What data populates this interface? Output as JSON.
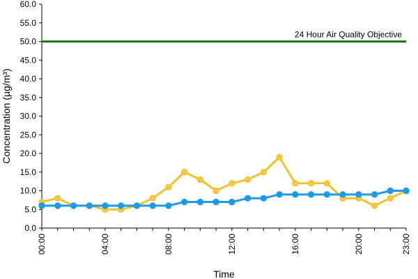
{
  "chart_data": {
    "type": "line",
    "xlabel": "Time",
    "ylabel": "Concentration (µg/m³)",
    "ylim": [
      0,
      60
    ],
    "y_ticks": [
      "0.0",
      "5.0",
      "10.0",
      "15.0",
      "20.0",
      "25.0",
      "30.0",
      "35.0",
      "40.0",
      "45.0",
      "50.0",
      "55.0",
      "60.0"
    ],
    "x_tick_labels": [
      "00:00",
      "04:00",
      "08:00",
      "12:00",
      "16:00",
      "20:00",
      "23:00"
    ],
    "x_tick_hours": [
      0,
      4,
      8,
      12,
      16,
      20,
      23
    ],
    "x": [
      0,
      1,
      2,
      3,
      4,
      5,
      6,
      7,
      8,
      9,
      10,
      11,
      12,
      13,
      14,
      15,
      16,
      17,
      18,
      19,
      20,
      21,
      22,
      23
    ],
    "grid": false,
    "legend": "none",
    "objective": {
      "value": 50,
      "label": "24 Hour Air Quality Objective",
      "color": "#1a7a1a"
    },
    "series": [
      {
        "color": "#f2c12e",
        "marker_color": "#f5c842",
        "values": [
          7,
          8,
          6,
          6,
          5,
          5,
          6,
          8,
          11,
          15,
          13,
          10,
          12,
          13,
          15,
          19,
          12,
          12,
          12,
          8,
          8,
          6,
          8,
          10
        ]
      },
      {
        "color": "#1e9be8",
        "marker_color": "#1e9be8",
        "values": [
          6,
          6,
          6,
          6,
          6,
          6,
          6,
          6,
          6,
          7,
          7,
          7,
          7,
          8,
          8,
          9,
          9,
          9,
          9,
          9,
          9,
          9,
          10,
          10
        ]
      }
    ]
  }
}
